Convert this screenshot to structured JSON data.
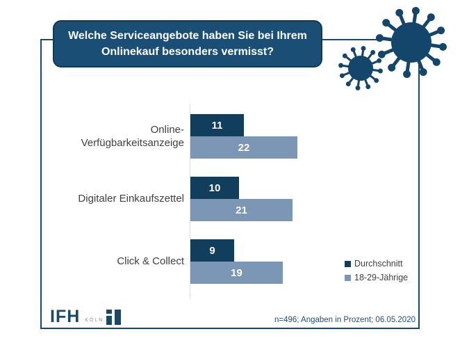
{
  "header": {
    "title": "Welche Serviceangebote haben Sie bei Ihrem Onlinekauf besonders vermisst?"
  },
  "chart_data": {
    "type": "bar",
    "orientation": "horizontal",
    "title": "Welche Serviceangebote haben Sie bei Ihrem Onlinekauf besonders vermisst?",
    "categories": [
      "Online-Verfügbarkeitsanzeige",
      "Digitaler Einkaufszettel",
      "Click & Collect"
    ],
    "series": [
      {
        "name": "Durchschnitt",
        "color": "#123e5e",
        "values": [
          11,
          10,
          9
        ]
      },
      {
        "name": "18-29-Jährige",
        "color": "#7b97b5",
        "values": [
          22,
          21,
          19
        ]
      }
    ],
    "value_unit": "Prozent",
    "xlim": [
      0,
      25
    ],
    "grid": false,
    "legend_position": "right",
    "data_labels": "inside-white-bold"
  },
  "footer": {
    "note": "n=496; Angaben in Prozent; 06.05.2020"
  },
  "logo": {
    "brand": "IFH",
    "city": "KÖLN"
  },
  "icons": {
    "decoration": "coronavirus-icon",
    "color": "#14466b"
  },
  "colors": {
    "navy_dark": "#123e5e",
    "steel_blue": "#7b97b5",
    "title_box": "#1a4e74",
    "frame_border": "#1b4866",
    "label_gray": "#3f3f3f",
    "footer_blue": "#1f4e79"
  }
}
